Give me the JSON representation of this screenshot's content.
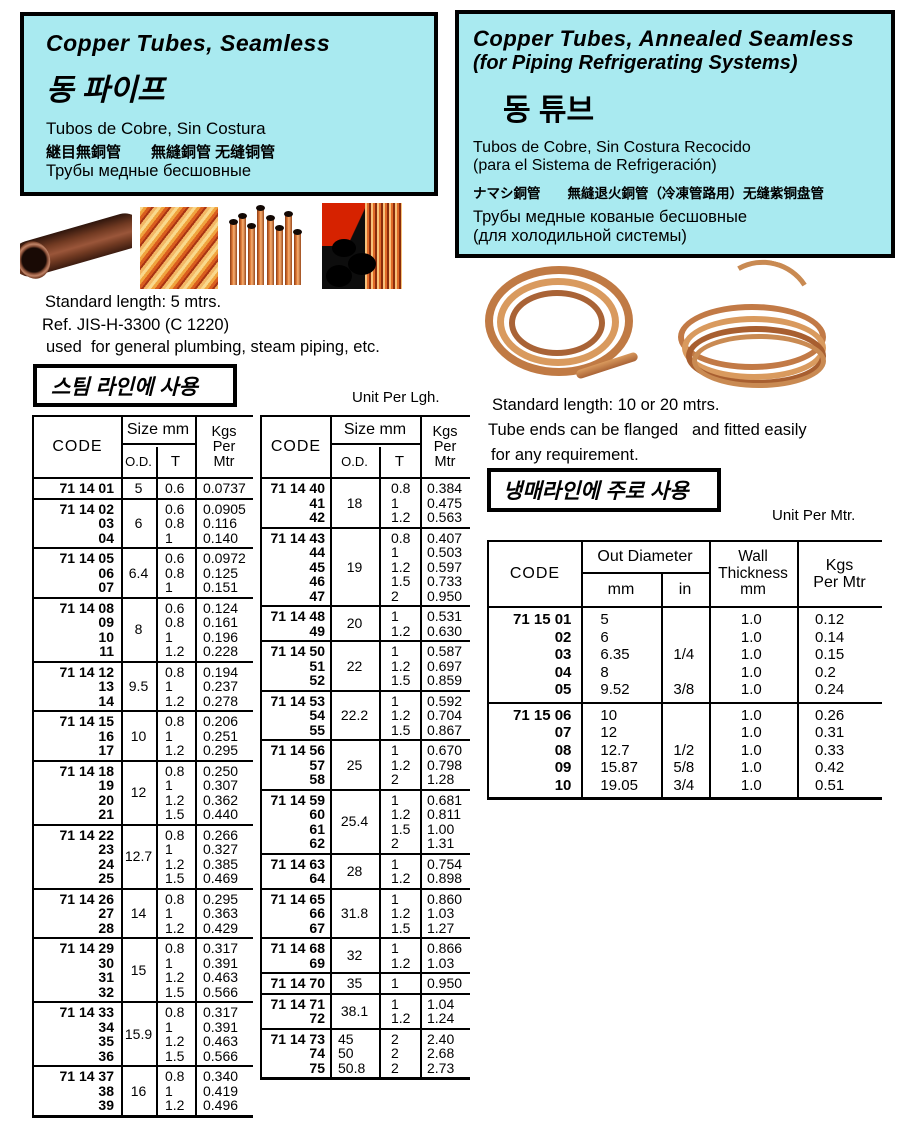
{
  "colors": {
    "header_bg": "#a9eaf0",
    "line": "#000000",
    "copper": "#c07a44"
  },
  "header_left": {
    "title": "Copper Tubes, Seamless",
    "korean": "동 파이프",
    "spanish": "Tubos de Cobre, Sin Costura",
    "cjk": "継目無銅管　　無縫銅管 无缝铜管",
    "russian": "Трубы медные бесшовные"
  },
  "header_right": {
    "title_line1": "Copper Tubes, Annealed Seamless",
    "title_line2": "(for Piping Refrigerating Systems)",
    "korean": "동 튜브",
    "spanish_line1": "Tubos de Cobre, Sin Costura Recocido",
    "spanish_line2": "(para el Sistema de Refrigeración)",
    "cjk": "ナマシ銅管　　無縫退火銅管（冷凍管路用）无缝紫铜盘管",
    "russian_line1": "Трубы медные кованые бесшовные",
    "russian_line2": "(для холодильной системы)"
  },
  "notes_left": {
    "standard_length": "Standard length: 5 mtrs.",
    "ref": "Ref. JIS-H-3300 (C 1220)",
    "used_for": "used  for general plumbing, steam piping, etc.",
    "usage_box": "스팀 라인에 사용"
  },
  "notes_right": {
    "standard_length": "Standard length: 10 or 20 mtrs.",
    "flanged_1": "Tube ends can be flanged   and fitted easily",
    "flanged_2": "for any requirement.",
    "usage_box": "냉매라인에 주로 사용",
    "unit": "Unit Per Mtr."
  },
  "unit_per_lgh": "Unit Per Lgh.",
  "table1": {
    "code_prefix": "71 14",
    "headers": {
      "code": "CODE",
      "size": "Size mm",
      "od": "O.D.",
      "t": "T",
      "kgs": [
        "Kgs",
        "Per",
        "Mtr"
      ]
    },
    "groups": [
      {
        "codes": [
          "01"
        ],
        "od": "5",
        "t": [
          "0.6"
        ],
        "kgs": [
          "0.0737"
        ]
      },
      {
        "codes": [
          "02",
          "03",
          "04"
        ],
        "od": "6",
        "t": [
          "0.6",
          "0.8",
          "1"
        ],
        "kgs": [
          "0.0905",
          "0.116",
          "0.140"
        ]
      },
      {
        "codes": [
          "05",
          "06",
          "07"
        ],
        "od": "6.4",
        "t": [
          "0.6",
          "0.8",
          "1"
        ],
        "kgs": [
          "0.0972",
          "0.125",
          "0.151"
        ]
      },
      {
        "codes": [
          "08",
          "09",
          "10",
          "11"
        ],
        "od": "8",
        "t": [
          "0.6",
          "0.8",
          "1",
          "1.2"
        ],
        "kgs": [
          "0.124",
          "0.161",
          "0.196",
          "0.228"
        ]
      },
      {
        "codes": [
          "12",
          "13",
          "14"
        ],
        "od": "9.5",
        "t": [
          "0.8",
          "1",
          "1.2"
        ],
        "kgs": [
          "0.194",
          "0.237",
          "0.278"
        ]
      },
      {
        "codes": [
          "15",
          "16",
          "17"
        ],
        "od": "10",
        "t": [
          "0.8",
          "1",
          "1.2"
        ],
        "kgs": [
          "0.206",
          "0.251",
          "0.295"
        ]
      },
      {
        "codes": [
          "18",
          "19",
          "20",
          "21"
        ],
        "od": "12",
        "t": [
          "0.8",
          "1",
          "1.2",
          "1.5"
        ],
        "kgs": [
          "0.250",
          "0.307",
          "0.362",
          "0.440"
        ]
      },
      {
        "codes": [
          "22",
          "23",
          "24",
          "25"
        ],
        "od": "12.7",
        "t": [
          "0.8",
          "1",
          "1.2",
          "1.5"
        ],
        "kgs": [
          "0.266",
          "0.327",
          "0.385",
          "0.469"
        ]
      },
      {
        "codes": [
          "26",
          "27",
          "28"
        ],
        "od": "14",
        "t": [
          "0.8",
          "1",
          "1.2"
        ],
        "kgs": [
          "0.295",
          "0.363",
          "0.429"
        ]
      },
      {
        "codes": [
          "29",
          "30",
          "31",
          "32"
        ],
        "od": "15",
        "t": [
          "0.8",
          "1",
          "1.2",
          "1.5"
        ],
        "kgs": [
          "0.317",
          "0.391",
          "0.463",
          "0.566"
        ]
      },
      {
        "codes": [
          "33",
          "34",
          "35",
          "36"
        ],
        "od": "15.9",
        "t": [
          "0.8",
          "1",
          "1.2",
          "1.5"
        ],
        "kgs": [
          "0.317",
          "0.391",
          "0.463",
          "0.566"
        ]
      },
      {
        "codes": [
          "37",
          "38",
          "39"
        ],
        "od": "16",
        "t": [
          "0.8",
          "1",
          "1.2"
        ],
        "kgs": [
          "0.340",
          "0.419",
          "0.496"
        ]
      }
    ]
  },
  "table2": {
    "code_prefix": "71 14",
    "headers": {
      "code": "CODE",
      "size": "Size mm",
      "od": "O.D.",
      "t": "T",
      "kgs": [
        "Kgs",
        "Per",
        "Mtr"
      ]
    },
    "groups": [
      {
        "codes": [
          "40",
          "41",
          "42"
        ],
        "od": "18",
        "t": [
          "0.8",
          "1",
          "1.2"
        ],
        "kgs": [
          "0.384",
          "0.475",
          "0.563"
        ]
      },
      {
        "codes": [
          "43",
          "44",
          "45",
          "46",
          "47"
        ],
        "od": "19",
        "t": [
          "0.8",
          "1",
          "1.2",
          "1.5",
          "2"
        ],
        "kgs": [
          "0.407",
          "0.503",
          "0.597",
          "0.733",
          "0.950"
        ]
      },
      {
        "codes": [
          "48",
          "49"
        ],
        "od": "20",
        "t": [
          "1",
          "1.2"
        ],
        "kgs": [
          "0.531",
          "0.630"
        ]
      },
      {
        "codes": [
          "50",
          "51",
          "52"
        ],
        "od": "22",
        "t": [
          "1",
          "1.2",
          "1.5"
        ],
        "kgs": [
          "0.587",
          "0.697",
          "0.859"
        ]
      },
      {
        "codes": [
          "53",
          "54",
          "55"
        ],
        "od": "22.2",
        "t": [
          "1",
          "1.2",
          "1.5"
        ],
        "kgs": [
          "0.592",
          "0.704",
          "0.867"
        ]
      },
      {
        "codes": [
          "56",
          "57",
          "58"
        ],
        "od": "25",
        "t": [
          "1",
          "1.2",
          "2"
        ],
        "kgs": [
          "0.670",
          "0.798",
          "1.28"
        ]
      },
      {
        "codes": [
          "59",
          "60",
          "61",
          "62"
        ],
        "od": "25.4",
        "t": [
          "1",
          "1.2",
          "1.5",
          "2"
        ],
        "kgs": [
          "0.681",
          "0.811",
          "1.00",
          "1.31"
        ]
      },
      {
        "codes": [
          "63",
          "64"
        ],
        "od": "28",
        "t": [
          "1",
          "1.2"
        ],
        "kgs": [
          "0.754",
          "0.898"
        ]
      },
      {
        "codes": [
          "65",
          "66",
          "67"
        ],
        "od": "31.8",
        "t": [
          "1",
          "1.2",
          "1.5"
        ],
        "kgs": [
          "0.860",
          "1.03",
          "1.27"
        ]
      },
      {
        "codes": [
          "68",
          "69"
        ],
        "od": "32",
        "t": [
          "1",
          "1.2"
        ],
        "kgs": [
          "0.866",
          "1.03"
        ]
      },
      {
        "codes": [
          "70"
        ],
        "od": "35",
        "t": [
          "1"
        ],
        "kgs": [
          "0.950"
        ]
      },
      {
        "codes": [
          "71",
          "72"
        ],
        "od": "38.1",
        "t": [
          "1",
          "1.2"
        ],
        "kgs": [
          "1.04",
          "1.24"
        ]
      },
      {
        "codes": [
          "73",
          "74",
          "75"
        ],
        "od_rows": [
          "45",
          "50",
          "50.8"
        ],
        "t": [
          "2",
          "2",
          "2"
        ],
        "kgs": [
          "2.40",
          "2.68",
          "2.73"
        ]
      }
    ]
  },
  "table3": {
    "code_prefix": "71 15",
    "headers": {
      "code": "CODE",
      "out_diameter": "Out Diameter",
      "mm": "mm",
      "in": "in",
      "wall": [
        "Wall",
        "Thickness",
        "mm"
      ],
      "kgs": [
        "Kgs",
        "Per Mtr"
      ]
    },
    "groups": [
      {
        "codes": [
          "01",
          "02",
          "03",
          "04",
          "05"
        ],
        "mm": [
          "5",
          "6",
          "6.35",
          "8",
          "9.52"
        ],
        "in": [
          "",
          "",
          "1/4",
          "",
          "3/8"
        ],
        "wall": [
          "1.0",
          "1.0",
          "1.0",
          "1.0",
          "1.0"
        ],
        "kgs": [
          "0.12",
          "0.14",
          "0.15",
          "0.2",
          "0.24"
        ]
      },
      {
        "codes": [
          "06",
          "07",
          "08",
          "09",
          "10"
        ],
        "mm": [
          "10",
          "12",
          "12.7",
          "15.87",
          "19.05"
        ],
        "in": [
          "",
          "",
          "1/2",
          "5/8",
          "3/4"
        ],
        "wall": [
          "1.0",
          "1.0",
          "1.0",
          "1.0",
          "1.0"
        ],
        "kgs": [
          "0.26",
          "0.31",
          "0.33",
          "0.42",
          "0.51"
        ]
      }
    ]
  }
}
